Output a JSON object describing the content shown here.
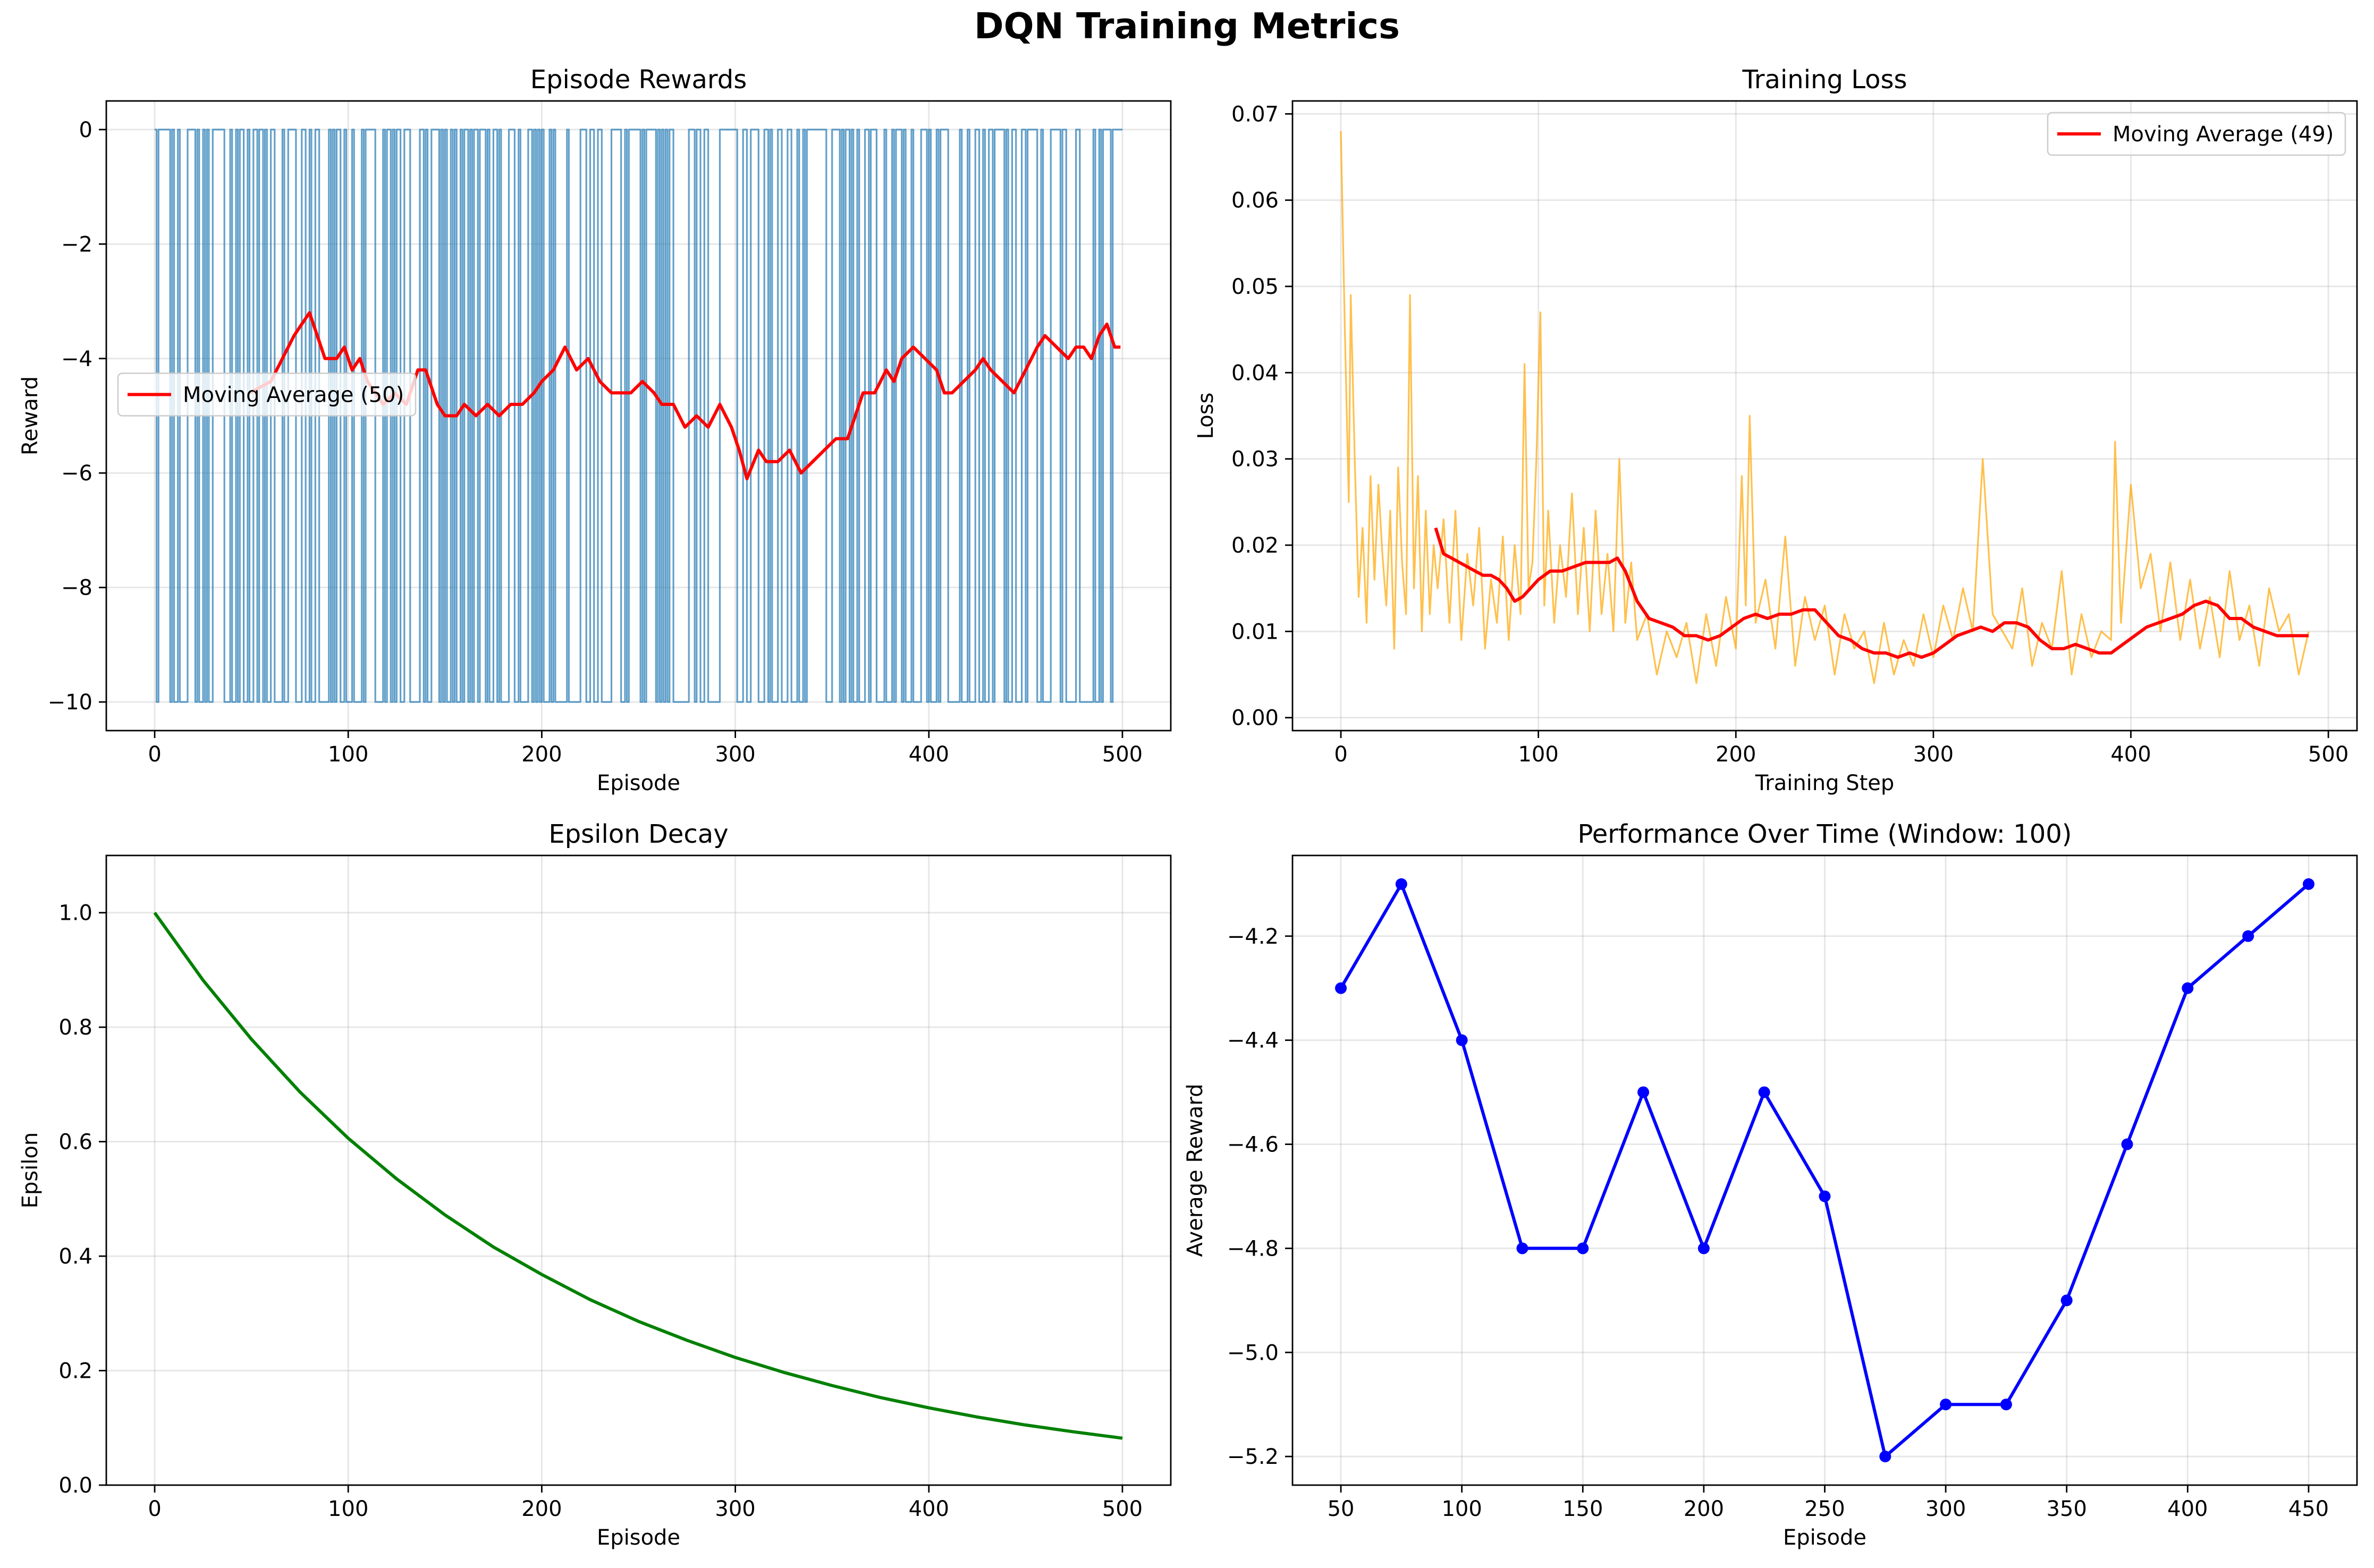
{
  "figure": {
    "title": "DQN Training Metrics"
  },
  "chart_data": [
    {
      "id": "rewards",
      "type": "line",
      "title": "Episode Rewards",
      "xlabel": "Episode",
      "ylabel": "Reward",
      "xlim": [
        -25,
        525
      ],
      "ylim": [
        -10.5,
        0.5
      ],
      "xticks": [
        0,
        100,
        200,
        300,
        400,
        500
      ],
      "yticks": [
        0,
        -2,
        -4,
        -6,
        -8,
        -10
      ],
      "grid": true,
      "legend": {
        "placement": "center-left",
        "entries": [
          "Moving Average (50)"
        ]
      },
      "series": [
        {
          "name": "",
          "color": "#1f77b4",
          "kind": "binary_step",
          "levels": [
            0,
            -10
          ],
          "description_values": "episode rewards alternate between 0 and -10 across episodes 0-499",
          "x_range": [
            0,
            499
          ]
        },
        {
          "name": "Moving Average (50)",
          "color": "#ff0000",
          "x": [
            49,
            60,
            66,
            72,
            76,
            80,
            84,
            88,
            94,
            98,
            102,
            106,
            110,
            114,
            118,
            124,
            130,
            136,
            140,
            146,
            150,
            156,
            160,
            166,
            172,
            178,
            184,
            190,
            196,
            200,
            206,
            212,
            218,
            224,
            230,
            236,
            240,
            246,
            252,
            258,
            262,
            268,
            274,
            280,
            286,
            292,
            298,
            302,
            306,
            312,
            316,
            322,
            328,
            334,
            340,
            346,
            352,
            358,
            362,
            366,
            372,
            378,
            382,
            386,
            392,
            398,
            404,
            408,
            412,
            418,
            424,
            428,
            432,
            438,
            444,
            450,
            456,
            460,
            466,
            472,
            476,
            480,
            484,
            488,
            492,
            496,
            499
          ],
          "y": [
            -4.6,
            -4.4,
            -4.0,
            -3.6,
            -3.4,
            -3.2,
            -3.6,
            -4.0,
            -4.0,
            -3.8,
            -4.2,
            -4.0,
            -4.4,
            -4.6,
            -4.8,
            -4.6,
            -4.8,
            -4.2,
            -4.2,
            -4.8,
            -5.0,
            -5.0,
            -4.8,
            -5.0,
            -4.8,
            -5.0,
            -4.8,
            -4.8,
            -4.6,
            -4.4,
            -4.2,
            -3.8,
            -4.2,
            -4.0,
            -4.4,
            -4.6,
            -4.6,
            -4.6,
            -4.4,
            -4.6,
            -4.8,
            -4.8,
            -5.2,
            -5.0,
            -5.2,
            -4.8,
            -5.2,
            -5.6,
            -6.1,
            -5.6,
            -5.8,
            -5.8,
            -5.6,
            -6.0,
            -5.8,
            -5.6,
            -5.4,
            -5.4,
            -5.0,
            -4.6,
            -4.6,
            -4.2,
            -4.4,
            -4.0,
            -3.8,
            -4.0,
            -4.2,
            -4.6,
            -4.6,
            -4.4,
            -4.2,
            -4.0,
            -4.2,
            -4.4,
            -4.6,
            -4.2,
            -3.8,
            -3.6,
            -3.8,
            -4.0,
            -3.8,
            -3.8,
            -4.0,
            -3.6,
            -3.4,
            -3.8,
            -3.8
          ]
        }
      ]
    },
    {
      "id": "loss",
      "type": "line",
      "title": "Training Loss",
      "xlabel": "Training Step",
      "ylabel": "Loss",
      "xlim": [
        -24.5,
        514.5
      ],
      "ylim": [
        -0.0015,
        0.0715
      ],
      "xticks": [
        0,
        100,
        200,
        300,
        400,
        500
      ],
      "yticks": [
        0.0,
        0.01,
        0.02,
        0.03,
        0.04,
        0.05,
        0.06,
        0.07
      ],
      "ytick_labels": [
        "0.00",
        "0.01",
        "0.02",
        "0.03",
        "0.04",
        "0.05",
        "0.06",
        "0.07"
      ],
      "grid": true,
      "legend": {
        "placement": "top-right",
        "entries": [
          "Moving Average (49)"
        ]
      },
      "series": [
        {
          "name": "",
          "color": "#ffa500",
          "x": [
            0,
            2,
            4,
            5,
            7,
            9,
            11,
            13,
            15,
            17,
            19,
            21,
            23,
            25,
            27,
            29,
            31,
            33,
            35,
            37,
            39,
            41,
            43,
            45,
            47,
            49,
            52,
            55,
            58,
            61,
            64,
            67,
            70,
            73,
            76,
            79,
            82,
            85,
            88,
            91,
            93,
            95,
            97,
            99,
            101,
            103,
            105,
            108,
            111,
            114,
            117,
            120,
            123,
            126,
            129,
            132,
            135,
            138,
            141,
            144,
            147,
            150,
            155,
            160,
            165,
            170,
            175,
            180,
            185,
            190,
            195,
            200,
            203,
            205,
            207,
            210,
            215,
            220,
            225,
            230,
            235,
            240,
            245,
            250,
            255,
            260,
            265,
            270,
            275,
            280,
            285,
            290,
            295,
            300,
            305,
            310,
            315,
            320,
            325,
            330,
            335,
            340,
            345,
            350,
            355,
            360,
            365,
            370,
            375,
            380,
            385,
            390,
            392,
            395,
            400,
            405,
            410,
            415,
            420,
            425,
            430,
            435,
            440,
            445,
            450,
            455,
            460,
            465,
            470,
            475,
            480,
            485,
            490
          ],
          "y": [
            0.068,
            0.045,
            0.025,
            0.049,
            0.03,
            0.014,
            0.022,
            0.011,
            0.028,
            0.016,
            0.027,
            0.019,
            0.013,
            0.024,
            0.008,
            0.029,
            0.018,
            0.012,
            0.049,
            0.015,
            0.028,
            0.01,
            0.024,
            0.012,
            0.02,
            0.015,
            0.023,
            0.011,
            0.024,
            0.009,
            0.019,
            0.013,
            0.022,
            0.008,
            0.016,
            0.011,
            0.021,
            0.009,
            0.02,
            0.012,
            0.041,
            0.015,
            0.018,
            0.03,
            0.047,
            0.013,
            0.024,
            0.011,
            0.02,
            0.014,
            0.026,
            0.012,
            0.022,
            0.01,
            0.024,
            0.012,
            0.019,
            0.01,
            0.03,
            0.011,
            0.018,
            0.009,
            0.012,
            0.005,
            0.01,
            0.007,
            0.011,
            0.004,
            0.012,
            0.006,
            0.014,
            0.008,
            0.028,
            0.013,
            0.035,
            0.011,
            0.016,
            0.008,
            0.021,
            0.006,
            0.014,
            0.009,
            0.013,
            0.005,
            0.012,
            0.008,
            0.01,
            0.004,
            0.011,
            0.005,
            0.009,
            0.006,
            0.012,
            0.007,
            0.013,
            0.009,
            0.015,
            0.01,
            0.03,
            0.012,
            0.01,
            0.008,
            0.015,
            0.006,
            0.011,
            0.008,
            0.017,
            0.005,
            0.012,
            0.007,
            0.01,
            0.009,
            0.032,
            0.011,
            0.027,
            0.015,
            0.019,
            0.01,
            0.018,
            0.009,
            0.016,
            0.008,
            0.014,
            0.007,
            0.017,
            0.009,
            0.013,
            0.006,
            0.015,
            0.01,
            0.012,
            0.005,
            0.01
          ]
        },
        {
          "name": "Moving Average (49)",
          "color": "#ff0000",
          "x": [
            48,
            52,
            56,
            60,
            64,
            68,
            72,
            76,
            80,
            84,
            88,
            92,
            96,
            100,
            106,
            112,
            118,
            124,
            130,
            136,
            140,
            144,
            150,
            156,
            162,
            168,
            174,
            180,
            186,
            192,
            198,
            204,
            210,
            216,
            222,
            228,
            234,
            240,
            246,
            252,
            258,
            264,
            270,
            276,
            282,
            288,
            294,
            300,
            306,
            312,
            318,
            324,
            330,
            336,
            342,
            348,
            354,
            360,
            366,
            372,
            378,
            384,
            390,
            396,
            402,
            408,
            414,
            420,
            426,
            432,
            438,
            444,
            450,
            456,
            462,
            468,
            474,
            480,
            486,
            490
          ],
          "y": [
            0.022,
            0.019,
            0.0185,
            0.018,
            0.0175,
            0.017,
            0.0165,
            0.0165,
            0.016,
            0.015,
            0.0135,
            0.014,
            0.015,
            0.016,
            0.017,
            0.017,
            0.0175,
            0.018,
            0.018,
            0.018,
            0.0185,
            0.017,
            0.0135,
            0.0115,
            0.011,
            0.0105,
            0.0095,
            0.0095,
            0.009,
            0.0095,
            0.0105,
            0.0115,
            0.012,
            0.0115,
            0.012,
            0.012,
            0.0125,
            0.0125,
            0.011,
            0.0095,
            0.009,
            0.008,
            0.0075,
            0.0075,
            0.007,
            0.0075,
            0.007,
            0.0075,
            0.0085,
            0.0095,
            0.01,
            0.0105,
            0.01,
            0.011,
            0.011,
            0.0105,
            0.009,
            0.008,
            0.008,
            0.0085,
            0.008,
            0.0075,
            0.0075,
            0.0085,
            0.0095,
            0.0105,
            0.011,
            0.0115,
            0.012,
            0.013,
            0.0135,
            0.013,
            0.0115,
            0.0115,
            0.0105,
            0.01,
            0.0095,
            0.0095,
            0.0095,
            0.0095
          ]
        }
      ]
    },
    {
      "id": "epsilon",
      "type": "line",
      "title": "Epsilon Decay",
      "xlabel": "Episode",
      "ylabel": "Epsilon",
      "xlim": [
        -25,
        525
      ],
      "ylim": [
        0.0,
        1.1
      ],
      "xticks": [
        0,
        100,
        200,
        300,
        400,
        500
      ],
      "yticks": [
        0.0,
        0.2,
        0.4,
        0.6,
        0.8,
        1.0
      ],
      "ytick_labels": [
        "0.0",
        "0.2",
        "0.4",
        "0.6",
        "0.8",
        "1.0"
      ],
      "grid": true,
      "series": [
        {
          "name": "",
          "color": "#008000",
          "x": [
            0,
            25,
            50,
            75,
            100,
            125,
            150,
            175,
            200,
            225,
            250,
            275,
            300,
            325,
            350,
            375,
            400,
            425,
            450,
            475,
            500
          ],
          "y": [
            1.0,
            0.882,
            0.779,
            0.687,
            0.606,
            0.535,
            0.472,
            0.416,
            0.368,
            0.324,
            0.286,
            0.253,
            0.223,
            0.197,
            0.174,
            0.153,
            0.135,
            0.119,
            0.105,
            0.093,
            0.082
          ]
        }
      ]
    },
    {
      "id": "performance",
      "type": "line",
      "title": "Performance Over Time (Window: 100)",
      "xlabel": "Episode",
      "ylabel": "Average Reward",
      "xlim": [
        30,
        470
      ],
      "ylim": [
        -5.255,
        -4.045
      ],
      "xticks": [
        50,
        100,
        150,
        200,
        250,
        300,
        350,
        400,
        450
      ],
      "yticks": [
        -4.2,
        -4.4,
        -4.6,
        -4.8,
        -5.0,
        -5.2
      ],
      "ytick_labels": [
        "-4.2",
        "-4.4",
        "-4.6",
        "-4.8",
        "-5.0",
        "-5.2"
      ],
      "grid": true,
      "series": [
        {
          "name": "",
          "color": "#0000ff",
          "markers": true,
          "x": [
            50,
            75,
            100,
            125,
            150,
            175,
            200,
            225,
            250,
            275,
            300,
            325,
            350,
            375,
            400,
            425,
            450
          ],
          "y": [
            -4.3,
            -4.1,
            -4.4,
            -4.8,
            -4.8,
            -4.5,
            -4.8,
            -4.5,
            -4.7,
            -5.2,
            -5.1,
            -5.1,
            -4.9,
            -4.6,
            -4.3,
            -4.2,
            -4.1
          ]
        }
      ]
    }
  ]
}
